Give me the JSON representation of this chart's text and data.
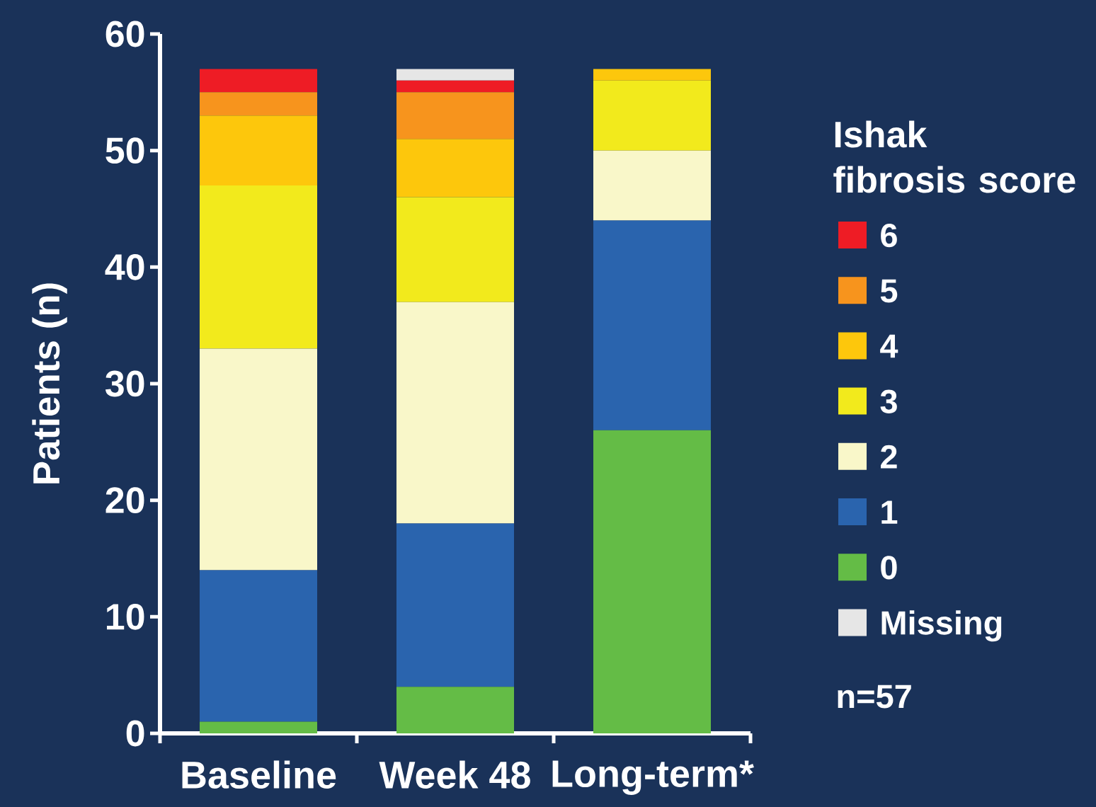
{
  "chart_data": {
    "type": "bar",
    "stacked": true,
    "ylabel": "Patients (n)",
    "categories": [
      "Baseline",
      "Week 48",
      "Long-term*"
    ],
    "ylim": [
      0,
      60
    ],
    "yticks": [
      0,
      10,
      20,
      30,
      40,
      50,
      60
    ],
    "legend": "right",
    "legend_title": "Ishak fibrosis score",
    "annotations": [
      "n=57"
    ],
    "series": [
      {
        "name": "0",
        "color": "#64bc46",
        "values": [
          1,
          4,
          26
        ]
      },
      {
        "name": "1",
        "color": "#2a64ae",
        "values": [
          13,
          14,
          18
        ]
      },
      {
        "name": "2",
        "color": "#f9f7c9",
        "values": [
          19,
          19,
          6
        ]
      },
      {
        "name": "3",
        "color": "#f2ea1c",
        "values": [
          14,
          9,
          6
        ]
      },
      {
        "name": "4",
        "color": "#fdc70c",
        "values": [
          6,
          5,
          1
        ]
      },
      {
        "name": "5",
        "color": "#f7941d",
        "values": [
          2,
          4,
          0
        ]
      },
      {
        "name": "6",
        "color": "#ee1c25",
        "values": [
          2,
          1,
          0
        ]
      },
      {
        "name": "Missing",
        "color": "#e6e6e6",
        "values": [
          0,
          1,
          0
        ]
      }
    ]
  }
}
